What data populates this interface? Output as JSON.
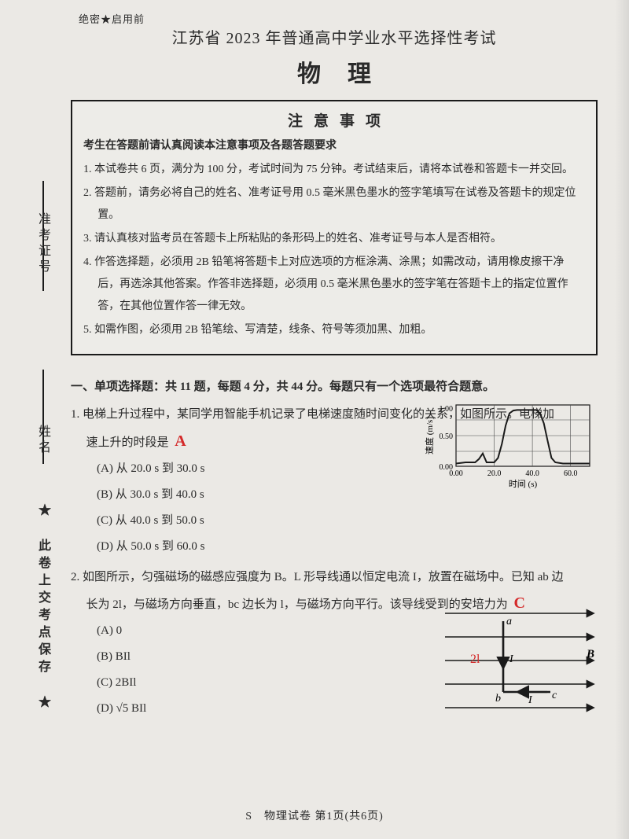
{
  "seal": "绝密★启用前",
  "title_main": "江苏省 2023 年普通高中学业水平选择性考试",
  "title_sub": "物理",
  "notice": {
    "title": "注意事项",
    "lead": "考生在答题前请认真阅读本注意事项及各题答题要求",
    "items": [
      "1. 本试卷共 6 页，满分为 100 分，考试时间为 75 分钟。考试结束后，请将本试卷和答题卡一并交回。",
      "2. 答题前，请务必将自己的姓名、准考证号用 0.5 毫米黑色墨水的签字笔填写在试卷及答题卡的规定位置。",
      "3. 请认真核对监考员在答题卡上所粘贴的条形码上的姓名、准考证号与本人是否相符。",
      "4. 作答选择题，必须用 2B 铅笔将答题卡上对应选项的方框涂满、涂黑；如需改动，请用橡皮擦干净后，再选涂其他答案。作答非选择题，必须用 0.5 毫米黑色墨水的签字笔在答题卡上的指定位置作答，在其他位置作答一律无效。",
      "5. 如需作图，必须用 2B 铅笔绘、写清楚，线条、符号等须加黑、加粗。"
    ]
  },
  "section1_head": "一、单项选择题：共 11 题，每题 4 分，共 44 分。每题只有一个选项最符合题意。",
  "q1": {
    "stem_a": "1. 电梯上升过程中，某同学用智能手机记录了电梯速度随时间变化的关系，如图所示。电梯加",
    "stem_b": "速上升的时段是",
    "answer_hand": "A",
    "options": [
      "(A) 从 20.0 s 到 30.0 s",
      "(B) 从 30.0 s 到 40.0 s",
      "(C) 从 40.0 s 到 50.0 s",
      "(D) 从 50.0 s 到 60.0 s"
    ],
    "chart": {
      "type": "line",
      "xlabel": "时间 (s)",
      "ylabel": "速度 (m/s)",
      "xlim": [
        0,
        70
      ],
      "ylim": [
        -0.05,
        1.05
      ],
      "xticks": [
        "0.00",
        "20.0",
        "40.0",
        "60.0"
      ],
      "yticks": [
        "0.00",
        "0.50",
        "1.00"
      ],
      "line_color": "#1a1a1a",
      "grid_color": "#4a4a4a",
      "data": [
        [
          0,
          0
        ],
        [
          5,
          0.02
        ],
        [
          10,
          0.02
        ],
        [
          12,
          0.08
        ],
        [
          14,
          0.18
        ],
        [
          16,
          0.02
        ],
        [
          18,
          0.02
        ],
        [
          20,
          0.02
        ],
        [
          22,
          0.1
        ],
        [
          24,
          0.35
        ],
        [
          26,
          0.68
        ],
        [
          28,
          0.9
        ],
        [
          30,
          0.95
        ],
        [
          32,
          0.96
        ],
        [
          36,
          0.96
        ],
        [
          40,
          0.96
        ],
        [
          42,
          0.96
        ],
        [
          44,
          0.9
        ],
        [
          46,
          0.72
        ],
        [
          48,
          0.4
        ],
        [
          50,
          0.1
        ],
        [
          52,
          0.02
        ],
        [
          56,
          0.0
        ],
        [
          60,
          0.0
        ],
        [
          65,
          0.0
        ],
        [
          70,
          0.0
        ]
      ]
    }
  },
  "q2": {
    "stem_a": "2. 如图所示，匀强磁场的磁感应强度为 B。L 形导线通以恒定电流 I，放置在磁场中。已知 ab 边",
    "stem_b": "长为 2l，与磁场方向垂直，bc 边长为 l，与磁场方向平行。该导线受到的安培力为",
    "answer_hand": "C",
    "hand_label": "2l",
    "options": [
      "(A) 0",
      "(B) BIl",
      "(C) 2BIl",
      "(D) √5 BIl"
    ],
    "fig": {
      "field_line_color": "#1a1a1a",
      "wire_color": "#1a1a1a",
      "labels": {
        "a": "a",
        "b": "b",
        "c": "c",
        "I": "I",
        "B": "B"
      }
    }
  },
  "rail": {
    "t1": "准考证号",
    "t2": "姓名",
    "t3": "★ 此卷上交考点保存 ★"
  },
  "footer": "S　物理试卷 第1页(共6页)"
}
